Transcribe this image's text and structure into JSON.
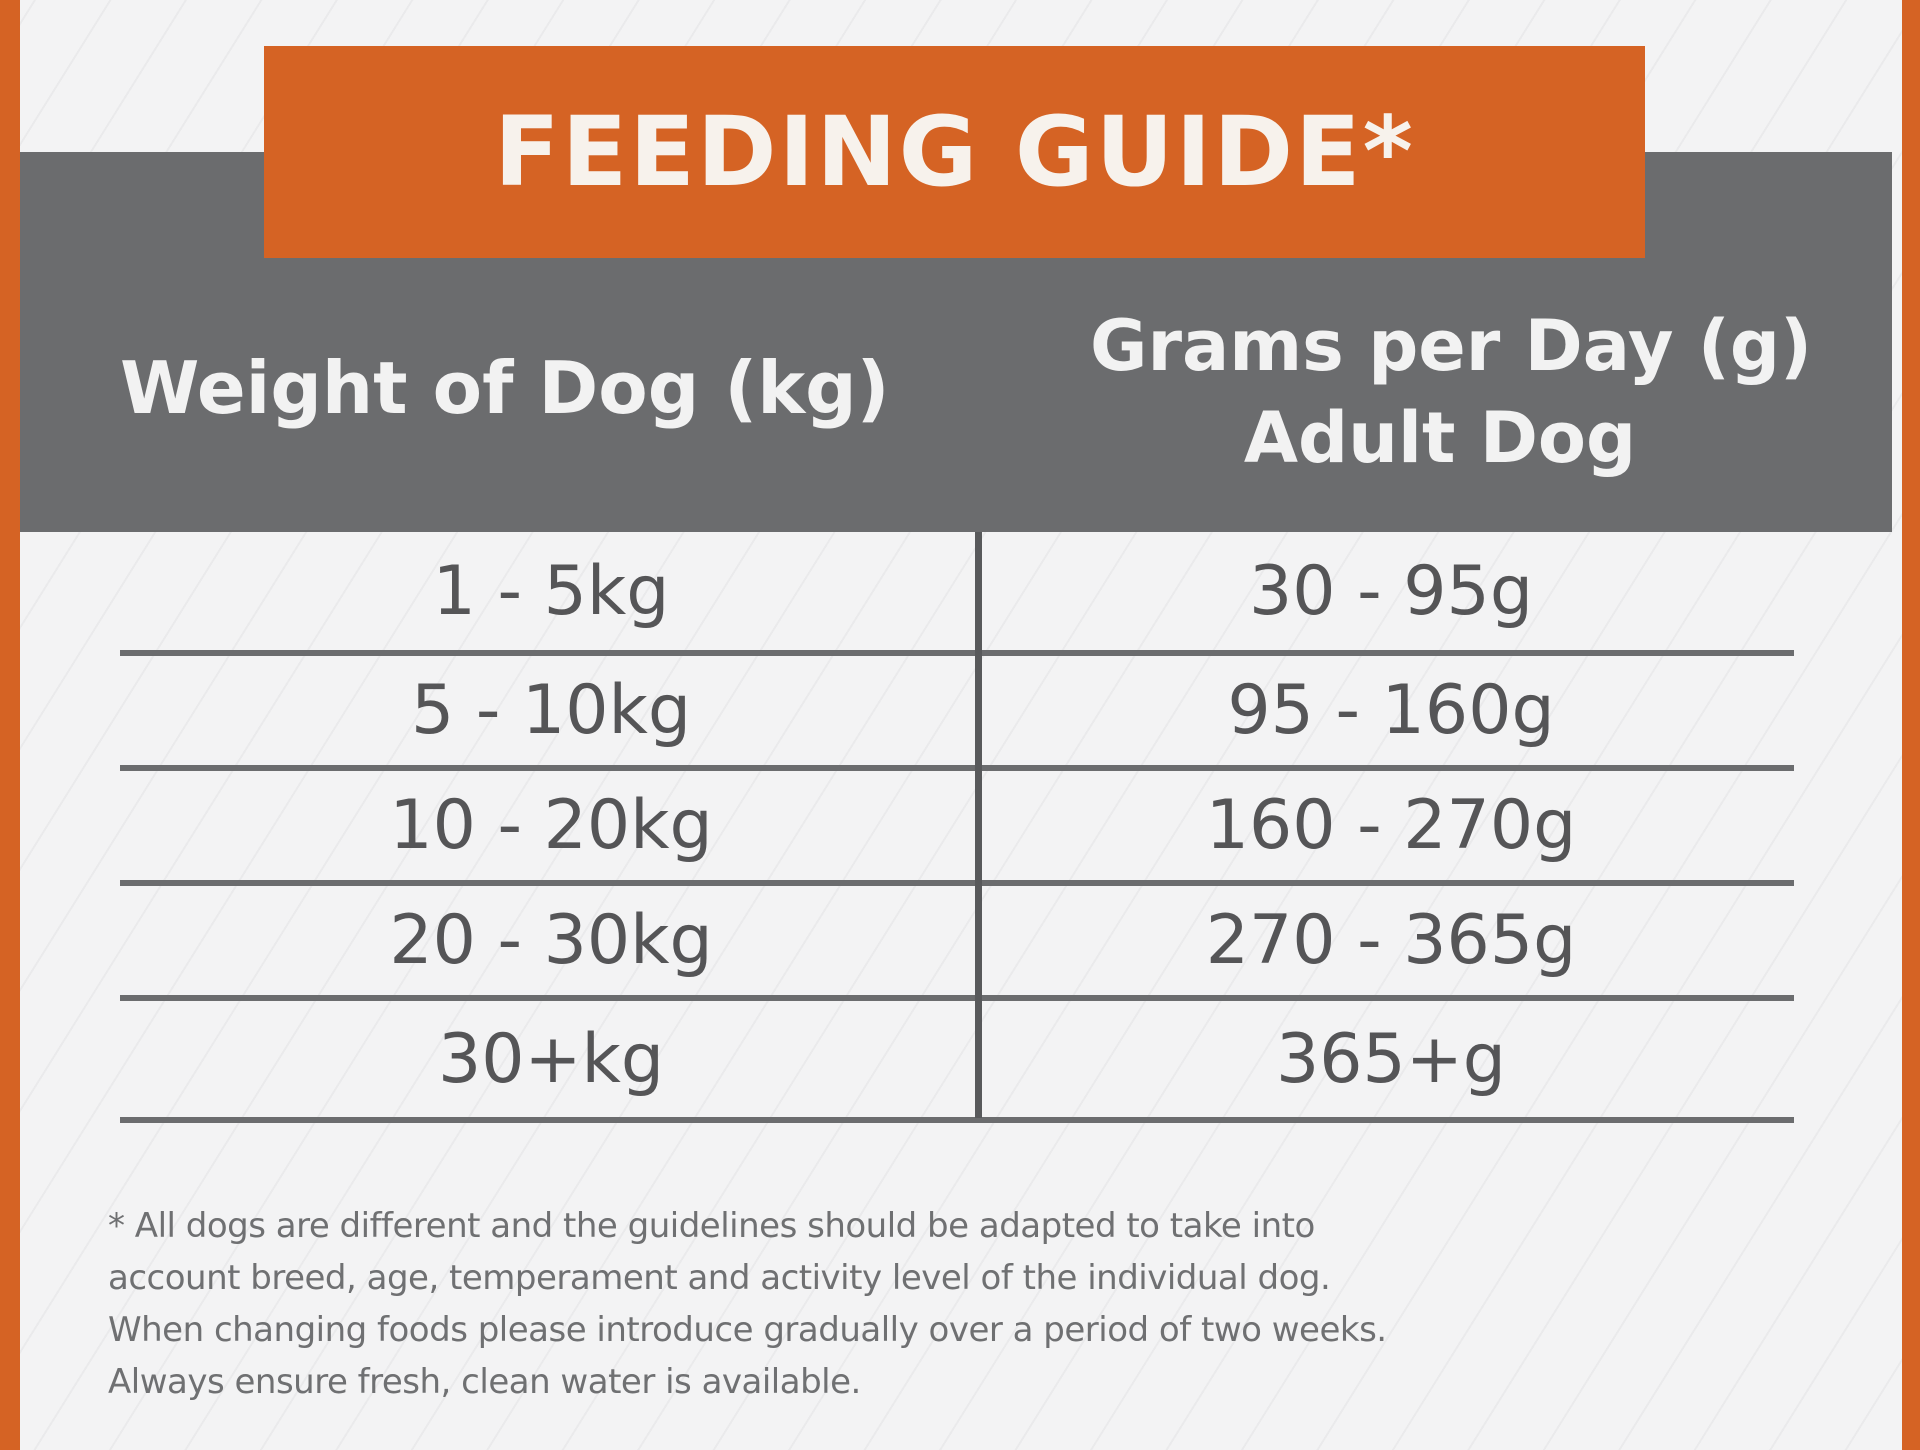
{
  "title": "FEEDING GUIDE*",
  "table": {
    "headers": {
      "weight": "Weight of Dog (kg)",
      "grams_line1": "Grams per Day (g)",
      "grams_line2": "Adult Dog"
    },
    "rows": [
      {
        "weight": "1 - 5kg",
        "grams": "30 - 95g"
      },
      {
        "weight": "5 - 10kg",
        "grams": "95 - 160g"
      },
      {
        "weight": "10 - 20kg",
        "grams": "160 - 270g"
      },
      {
        "weight": "20 - 30kg",
        "grams": "270 - 365g"
      },
      {
        "weight": "30+kg",
        "grams": "365+g"
      }
    ]
  },
  "footnote": {
    "line1": "* All dogs are different and the guidelines should be adapted to take into",
    "line2": "account breed, age, temperament and activity level of the individual dog.",
    "line3": "When changing foods please introduce gradually over a period of two weeks.",
    "line4": "Always ensure fresh, clean water is available."
  },
  "colors": {
    "accent_orange": "#d56324",
    "header_gray": "#6b6c6e",
    "background": "#f3f3f4",
    "text_gray": "#555557"
  }
}
